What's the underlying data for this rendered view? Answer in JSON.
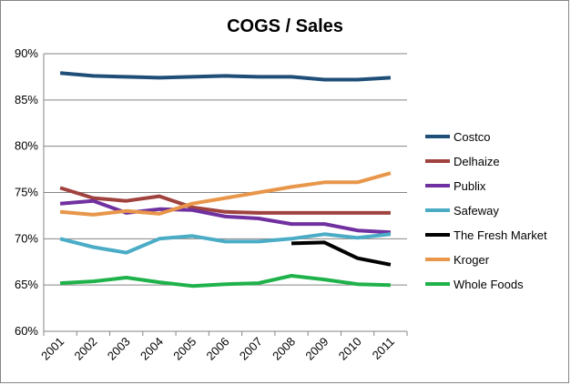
{
  "chart_data": {
    "type": "line",
    "title": "COGS / Sales",
    "xlabel": "",
    "ylabel": "",
    "x": [
      "2001",
      "2002",
      "2003",
      "2004",
      "2005",
      "2006",
      "2007",
      "2008",
      "2009",
      "2010",
      "2011"
    ],
    "ylim": [
      60,
      90
    ],
    "yticks": [
      "60%",
      "65%",
      "70%",
      "75%",
      "80%",
      "85%",
      "90%"
    ],
    "ytick_values": [
      60,
      65,
      70,
      75,
      80,
      85,
      90
    ],
    "grid": "horizontal",
    "legend_position": "right",
    "series": [
      {
        "name": "Costco",
        "color": "#1f4e79",
        "values": [
          87.9,
          87.6,
          87.5,
          87.4,
          87.5,
          87.6,
          87.5,
          87.5,
          87.2,
          87.2,
          87.4
        ]
      },
      {
        "name": "Delhaize",
        "color": "#a0433f",
        "values": [
          75.5,
          74.4,
          74.1,
          74.6,
          73.4,
          72.9,
          72.8,
          72.8,
          72.8,
          72.8,
          72.8
        ]
      },
      {
        "name": "Publix",
        "color": "#7030a0",
        "values": [
          73.8,
          74.1,
          72.8,
          73.2,
          73.1,
          72.4,
          72.2,
          71.6,
          71.6,
          70.9,
          70.7
        ]
      },
      {
        "name": "Safeway",
        "color": "#4bacc6",
        "values": [
          70.0,
          69.1,
          68.5,
          70.0,
          70.3,
          69.7,
          69.7,
          70.0,
          70.5,
          70.1,
          70.5
        ]
      },
      {
        "name": "The Fresh Market",
        "color": "#000000",
        "values": [
          null,
          null,
          null,
          null,
          null,
          null,
          null,
          69.5,
          69.6,
          67.9,
          67.2
        ]
      },
      {
        "name": "Kroger",
        "color": "#e8964a",
        "values": [
          72.9,
          72.6,
          73.0,
          72.7,
          73.8,
          74.4,
          75.0,
          75.6,
          76.1,
          76.1,
          77.1
        ]
      },
      {
        "name": "Whole Foods",
        "color": "#1fb24a",
        "values": [
          65.2,
          65.4,
          65.8,
          65.3,
          64.9,
          65.1,
          65.2,
          66.0,
          65.6,
          65.1,
          65.0
        ]
      }
    ]
  }
}
